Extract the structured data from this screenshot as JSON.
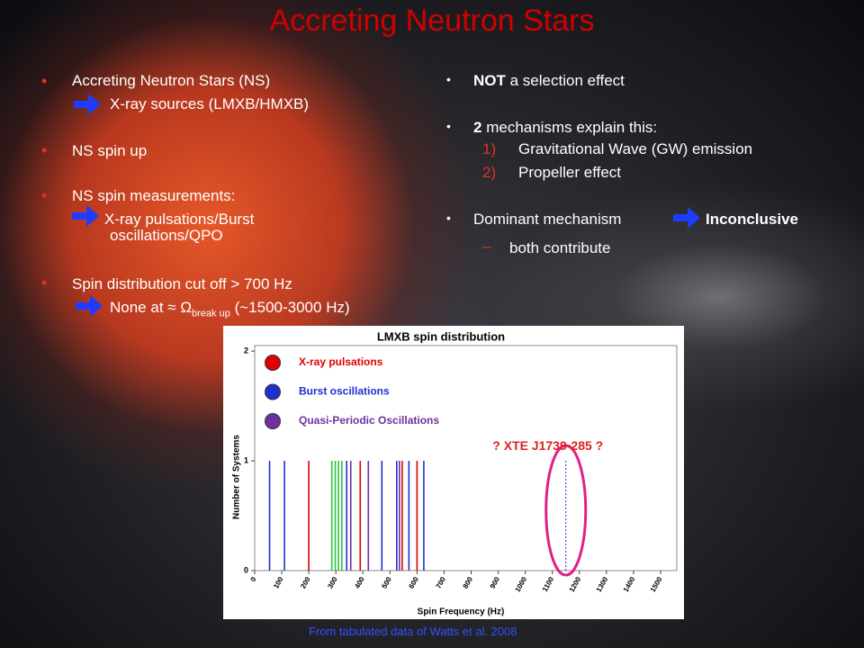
{
  "title": "Accreting Neutron Stars",
  "left_bullets": [
    {
      "text": "Accreting Neutron Stars (NS)",
      "sub": [
        "X-ray sources (LMXB/HMXB)"
      ]
    },
    {
      "text": "NS spin up"
    },
    {
      "text": "NS spin measurements:",
      "sub": [
        "X-ray pulsations/Burst",
        "oscillations/QPO"
      ]
    },
    {
      "text": "Spin distribution cut off > 700 Hz",
      "sub": [
        "None at ≈ Ω",
        "break up",
        "(~1500-3000 Hz)"
      ]
    }
  ],
  "right_bullets": [
    {
      "bold": "NOT",
      "text": "a selection effect"
    },
    {
      "bold": "2",
      "text": "mechanisms explain this:",
      "items": [
        {
          "num": "1)",
          "text": "Gravitational Wave (GW) emission"
        },
        {
          "num": "2)",
          "text": "Propeller effect"
        }
      ]
    },
    {
      "text": "Dominant mechanism",
      "bold": "Inconclusive",
      "sub": "both contribute"
    }
  ],
  "chart_data": {
    "type": "spikes",
    "title": "LMXB spin distribution",
    "xlabel": "Spin Frequency (Hz)",
    "ylabel": "Number of Systems",
    "xlim": [
      0,
      1560
    ],
    "ylim": [
      0,
      2.05
    ],
    "xticks": [
      0,
      100,
      200,
      300,
      400,
      500,
      600,
      700,
      800,
      900,
      1000,
      1100,
      1200,
      1300,
      1400,
      1500
    ],
    "yticks": [
      0,
      1,
      2
    ],
    "series": [
      {
        "name": "X-ray pulsations",
        "color": "#e00000",
        "x": [
          200,
          390,
          545,
          600
        ],
        "values": [
          1,
          1,
          1,
          1
        ]
      },
      {
        "name": "Burst oscillations",
        "color": "#2030d0",
        "x": [
          55,
          110,
          340,
          470,
          525,
          570,
          625,
          1150
        ],
        "values": [
          1,
          1,
          1,
          1,
          1,
          1,
          1,
          1
        ],
        "dotted": [
          false,
          false,
          false,
          false,
          false,
          false,
          false,
          true
        ]
      },
      {
        "name": "Quasi-Periodic Oscillations",
        "color": "#7030a0",
        "x": [
          355,
          420,
          535
        ],
        "values": [
          1,
          1,
          1
        ]
      },
      {
        "color": "#30c040",
        "x": [
          285,
          298,
          310,
          322
        ],
        "values": [
          1,
          1,
          1,
          1
        ]
      }
    ],
    "annotation": {
      "text": "? XTE J1739-285 ?",
      "x": 1150,
      "value": 1
    }
  },
  "caption": "From tabulated data of Watts et al. 2008"
}
